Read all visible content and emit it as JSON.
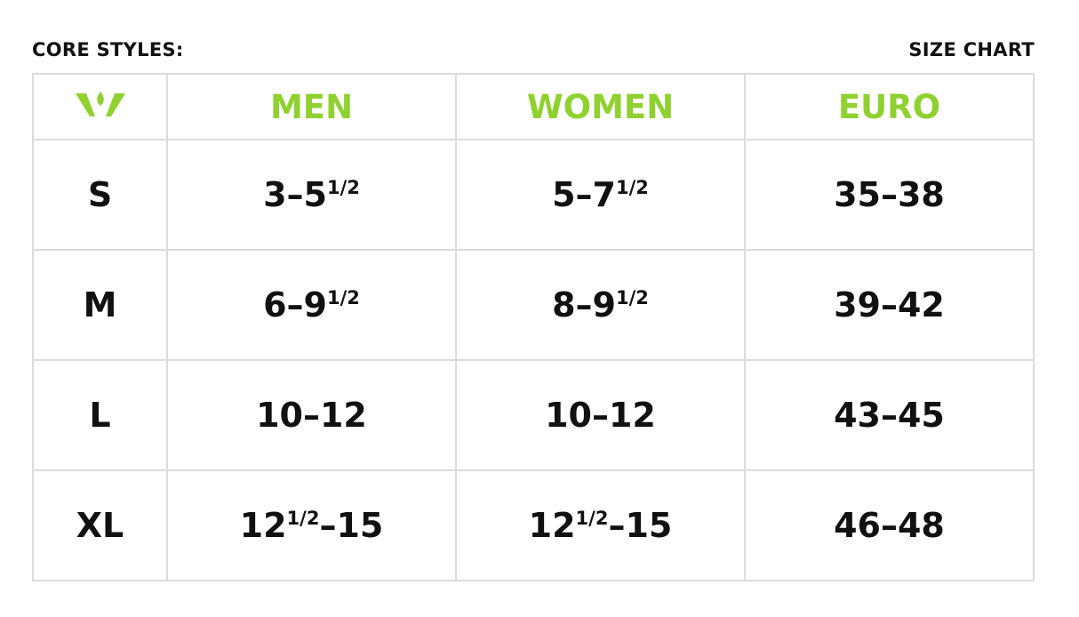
{
  "header_left": "CORE STYLES:",
  "header_right": "SIZE CHART",
  "logo": {
    "icon": "brand-logo-icon",
    "color": "#8fd12f"
  },
  "accent_color": "#8fd12f",
  "columns": [
    "",
    "MEN",
    "WOMEN",
    "EURO"
  ],
  "rows": [
    {
      "size": "S",
      "men": {
        "pre": "3–5",
        "sup": "1/2",
        "post": ""
      },
      "women": {
        "pre": "5–7",
        "sup": "1/2",
        "post": ""
      },
      "euro": "35–38"
    },
    {
      "size": "M",
      "men": {
        "pre": "6–9",
        "sup": "1/2",
        "post": ""
      },
      "women": {
        "pre": "8–9",
        "sup": "1/2",
        "post": ""
      },
      "euro": "39–42"
    },
    {
      "size": "L",
      "men": {
        "pre": "10–12",
        "sup": "",
        "post": ""
      },
      "women": {
        "pre": "10–12",
        "sup": "",
        "post": ""
      },
      "euro": "43–45"
    },
    {
      "size": "XL",
      "men": {
        "pre": "12",
        "sup": "1/2",
        "post": "–15"
      },
      "women": {
        "pre": "12",
        "sup": "1/2",
        "post": "–15"
      },
      "euro": "46–48"
    }
  ]
}
